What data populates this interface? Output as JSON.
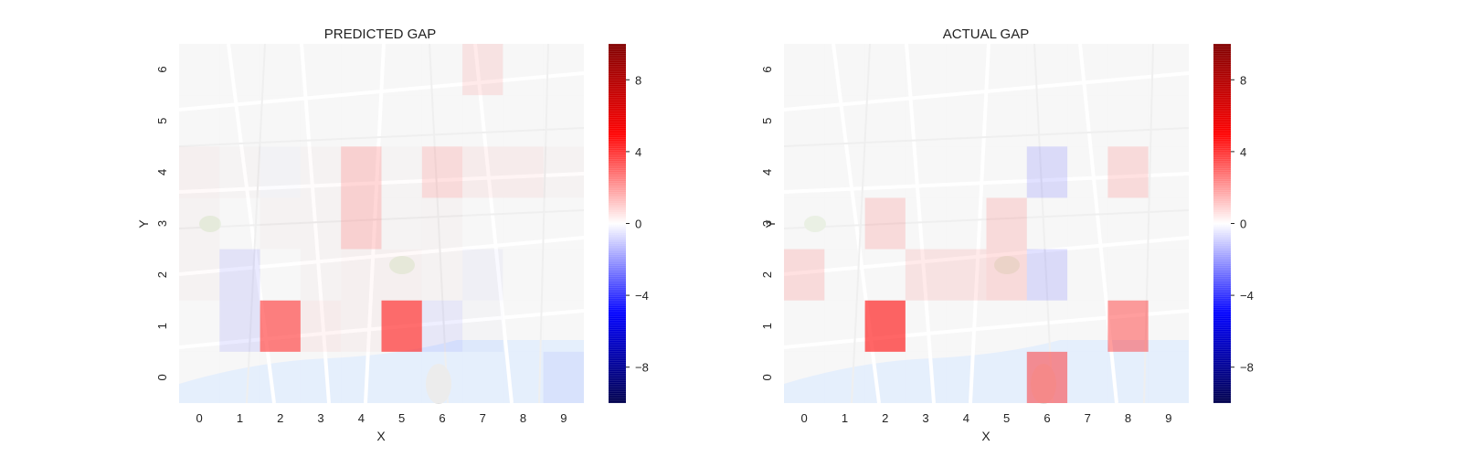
{
  "chart_data": [
    {
      "type": "heatmap",
      "title": "PREDICTED GAP",
      "xlabel": "X",
      "ylabel": "Y",
      "x_ticks": [
        "0",
        "1",
        "2",
        "3",
        "4",
        "5",
        "6",
        "7",
        "8",
        "9"
      ],
      "y_ticks": [
        "0",
        "1",
        "2",
        "3",
        "4",
        "5",
        "6"
      ],
      "colorbar": {
        "min": -10,
        "max": 10,
        "ticks": [
          8,
          4,
          0,
          -4,
          -8
        ],
        "tick_labels": [
          "8",
          "4",
          "0",
          "−4",
          "−8"
        ],
        "colormap": "seismic"
      },
      "background": "street map",
      "values": [
        [
          0,
          0,
          0,
          0,
          0,
          0,
          0,
          0,
          0,
          -0.8
        ],
        [
          0,
          -1.2,
          3.5,
          0.8,
          0.5,
          3.8,
          -1.0,
          -0.2,
          0,
          0
        ],
        [
          0.3,
          -1.2,
          0,
          0.3,
          0.5,
          0.5,
          0.3,
          -0.5,
          0,
          0
        ],
        [
          0.3,
          0,
          0.3,
          0.3,
          1.8,
          0.2,
          0.3,
          0,
          0,
          0
        ],
        [
          0.5,
          0.2,
          -0.3,
          0.3,
          1.8,
          0.2,
          1.5,
          0.8,
          0.8,
          0.3
        ],
        [
          0,
          0,
          0,
          0,
          0,
          0,
          0,
          0,
          0,
          0
        ],
        [
          0,
          0,
          0,
          0,
          0,
          0,
          0,
          1.2,
          0,
          0
        ]
      ]
    },
    {
      "type": "heatmap",
      "title": "ACTUAL GAP",
      "xlabel": "X",
      "ylabel": "Y",
      "x_ticks": [
        "0",
        "1",
        "2",
        "3",
        "4",
        "5",
        "6",
        "7",
        "8",
        "9"
      ],
      "y_ticks": [
        "0",
        "1",
        "2",
        "3",
        "4",
        "5",
        "6"
      ],
      "colorbar": {
        "min": -10,
        "max": 10,
        "ticks": [
          8,
          4,
          0,
          -4,
          -8
        ],
        "tick_labels": [
          "8",
          "4",
          "0",
          "−4",
          "−8"
        ],
        "colormap": "seismic"
      },
      "background": "street map",
      "values": [
        [
          0,
          0,
          0,
          0,
          0,
          0,
          3.2,
          0,
          0,
          0
        ],
        [
          0,
          0,
          4.0,
          0,
          0,
          0,
          0,
          0,
          3.0,
          0
        ],
        [
          1.5,
          0,
          0,
          1.2,
          1.2,
          1.5,
          -1.5,
          0,
          0,
          0
        ],
        [
          0,
          0,
          1.5,
          0,
          0,
          1.5,
          0,
          0,
          0,
          0
        ],
        [
          0,
          0,
          0,
          0,
          0,
          0,
          -1.5,
          0,
          1.5,
          0
        ],
        [
          0,
          0,
          0,
          0,
          0,
          0,
          0,
          0,
          0,
          0
        ],
        [
          0,
          0,
          0,
          0,
          0,
          0,
          0,
          0,
          0,
          0
        ]
      ]
    }
  ]
}
